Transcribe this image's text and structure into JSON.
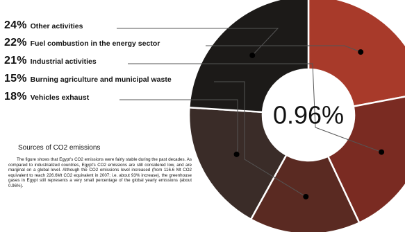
{
  "chart_data": {
    "type": "pie",
    "center_label": "0.96%",
    "legend": [
      {
        "value": "24%",
        "label": "Other activities",
        "color": "#1c1a18"
      },
      {
        "value": "22%",
        "label": "Fuel combustion in the energy sector",
        "color": "#a83a2a"
      },
      {
        "value": "21%",
        "label": "Industrial activities",
        "color": "#7a2b22"
      },
      {
        "value": "15%",
        "label": "Burning agriculture and municipal waste",
        "color": "#5a2a22"
      },
      {
        "value": "18%",
        "label": "Vehicles exhaust",
        "color": "#3a2c28"
      }
    ],
    "slices": [
      {
        "label": "Fuel combustion in the energy sector",
        "value": 22,
        "color": "#a83a2a"
      },
      {
        "label": "Industrial activities",
        "value": 21,
        "color": "#7a2b22"
      },
      {
        "label": "Burning agriculture and municipal waste",
        "value": 15,
        "color": "#5a2a22"
      },
      {
        "label": "Vehicles exhaust",
        "value": 18,
        "color": "#3a2c28"
      },
      {
        "label": "Other activities",
        "value": 24,
        "color": "#1c1a18"
      }
    ]
  },
  "text": {
    "title": "Sources of CO2 emissions",
    "body": "The figure shows that Egypt's CO2 emissions were fairly stable during the past decades. As compared to industrialized countries, Egypt's CO2 emissions are still considered low, and are marginal on a global level. Although the CO2 emissions level increased (from 116.6 Mt CO2 equivalent to reach 226.6Mt CO2 equivalent in 2007; i.e. about 93% increase), the greenhouse gases in Egypt still represents a very small percentage of the global yearly emissions (about 0.96%)."
  }
}
